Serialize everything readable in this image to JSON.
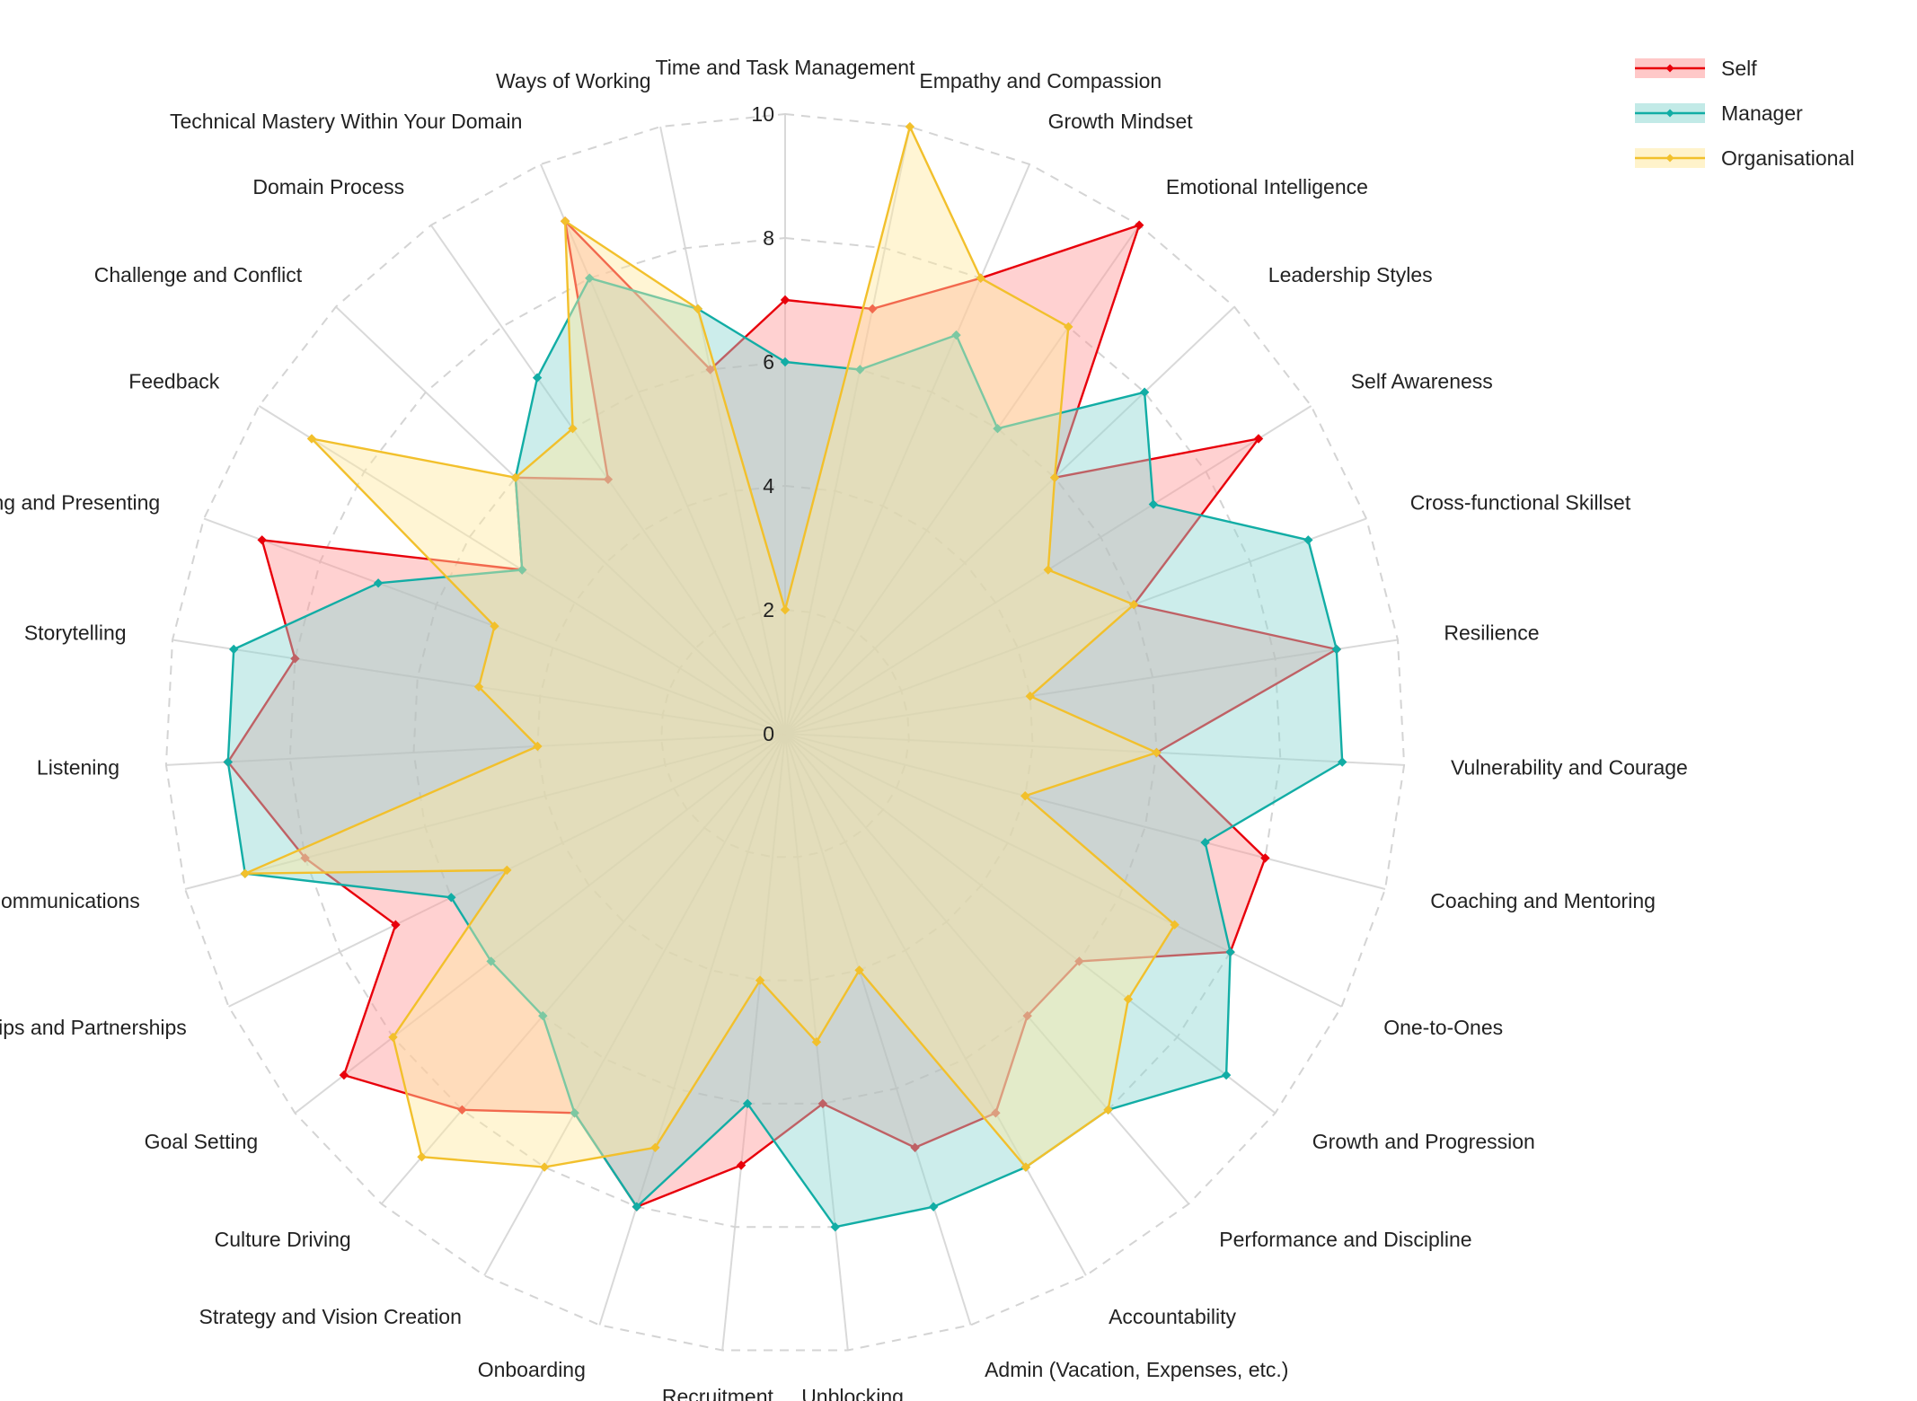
{
  "chart_data": {
    "type": "radar",
    "categories": [
      "Time and Task Management",
      "Empathy and Compassion",
      "Growth Mindset",
      "Emotional Intelligence",
      "Leadership Styles",
      "Self Awareness",
      "Cross-functional Skillset",
      "Resilience",
      "Vulnerability and Courage",
      "Coaching and Mentoring",
      "One-to-Ones",
      "Growth and Progression",
      "Performance and Discipline",
      "Accountability",
      "Admin (Vacation, Expenses, etc.)",
      "Unblocking",
      "Recruitment",
      "Onboarding",
      "Strategy and Vision Creation",
      "Culture Driving",
      "Goal Setting",
      "Relationships and Partnerships",
      "Written Communications",
      "Listening",
      "Storytelling",
      "Public Speaking and Presenting",
      "Feedback",
      "Challenge and Conflict",
      "Domain Process",
      "Technical Mastery Within Your Domain",
      "Ways of Working"
    ],
    "series": [
      {
        "name": "Self",
        "color": "#e8000b",
        "fill": "#ff9a9a",
        "values": [
          7,
          7,
          8,
          10,
          6,
          9,
          6,
          9,
          6,
          8,
          8,
          6,
          6,
          7,
          7,
          6,
          7,
          8,
          7,
          8,
          9,
          7,
          8,
          9,
          8,
          9,
          5,
          6,
          5,
          9,
          6
        ]
      },
      {
        "name": "Manager",
        "color": "#12ada5",
        "fill": "#8fd8d3",
        "values": [
          6,
          6,
          7,
          6,
          8,
          7,
          9,
          9,
          9,
          7,
          8,
          9,
          8,
          8,
          8,
          8,
          6,
          8,
          7,
          6,
          6,
          6,
          9,
          9,
          9,
          7,
          5,
          6,
          7,
          8,
          7
        ]
      },
      {
        "name": "Organisational",
        "color": "#f2c02c",
        "fill": "#ffe9a0",
        "values": [
          2,
          10,
          8,
          8,
          6,
          5,
          6,
          4,
          6,
          4,
          7,
          7,
          8,
          8,
          4,
          5,
          4,
          7,
          8,
          9,
          8,
          5,
          9,
          4,
          5,
          5,
          9,
          6,
          6,
          9,
          7
        ]
      }
    ],
    "rlim": [
      0,
      10
    ],
    "rticks": [
      0,
      2,
      4,
      6,
      8,
      10
    ],
    "grid": true,
    "legend": "top-right"
  }
}
